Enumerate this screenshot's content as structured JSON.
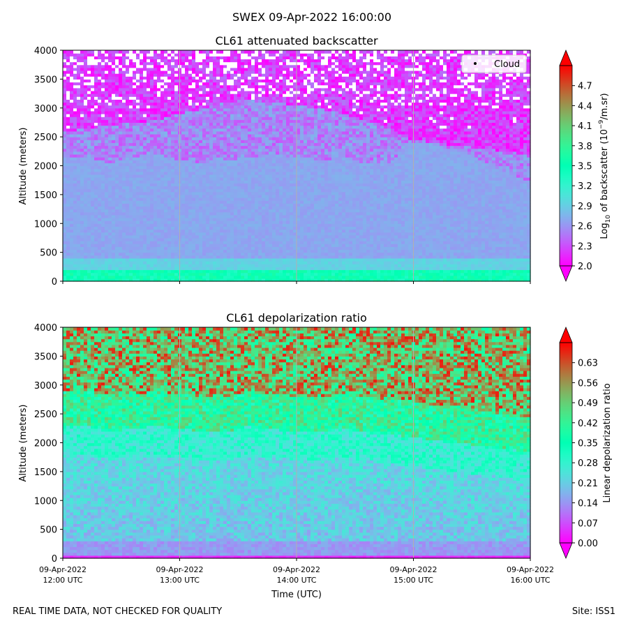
{
  "suptitle": "SWEX 09-Apr-2022 16:00:00",
  "footer": {
    "left": "REAL TIME DATA, NOT CHECKED FOR QUALITY",
    "right": "Site: ISS1"
  },
  "chart_data": [
    {
      "type": "heatmap",
      "title": "CL61 attenuated backscatter",
      "xlabel": "",
      "ylabel": "Altitude (meters)",
      "ylim": [
        0,
        4000
      ],
      "yticks": [
        0,
        500,
        1000,
        1500,
        2000,
        2500,
        3000,
        3500,
        4000
      ],
      "x_categories": [
        "12:00",
        "13:00",
        "14:00",
        "15:00",
        "16:00"
      ],
      "colorbar": {
        "label_pre": "Log",
        "label_sub": "10",
        "label_mid": " of backscatter (10",
        "label_sup": "−9",
        "label_post": "/m.sr)",
        "range": [
          2.0,
          5.0
        ],
        "ticks": [
          "2.0",
          "2.3",
          "2.6",
          "2.9",
          "3.2",
          "3.5",
          "3.8",
          "4.1",
          "4.4",
          "4.7"
        ],
        "colormap": "rainbow",
        "extend": "both"
      },
      "legend": {
        "entries": [
          "Cloud"
        ],
        "position": "top-right"
      },
      "features": {
        "surface_layer_top_m": 180,
        "boundary_layer_top_m": [
          2150,
          2150,
          2050,
          2150,
          2200,
          2100,
          2050,
          2100,
          2150,
          2200,
          2150,
          2100,
          2150,
          2050,
          2050,
          2400,
          2350,
          2250,
          2100,
          1900,
          1750
        ],
        "aerosol_layer_top_m": [
          2600,
          2650,
          2700,
          2750,
          2800,
          2900,
          3000,
          3100,
          3150,
          3100,
          3050,
          3000,
          2900,
          2800,
          2650,
          2450,
          2400,
          2350,
          2300,
          2250,
          2200
        ]
      }
    },
    {
      "type": "heatmap",
      "title": "CL61 depolarization ratio",
      "xlabel": "Time (UTC)",
      "ylabel": "Altitude (meters)",
      "ylim": [
        0,
        4000
      ],
      "yticks": [
        0,
        500,
        1000,
        1500,
        2000,
        2500,
        3000,
        3500,
        4000
      ],
      "x_categories": [
        "12:00",
        "13:00",
        "14:00",
        "15:00",
        "16:00"
      ],
      "colorbar": {
        "label": "Linear depolarization ratio",
        "range": [
          0.0,
          0.7
        ],
        "ticks": [
          "0.00",
          "0.07",
          "0.14",
          "0.21",
          "0.28",
          "0.35",
          "0.42",
          "0.49",
          "0.56",
          "0.63"
        ],
        "colormap": "rainbow",
        "extend": "both"
      },
      "features": {
        "surface_layer_top_m": 60,
        "transition_top_m": [
          2300,
          2300,
          2200,
          2250,
          2300,
          2250,
          2200,
          2200,
          2300,
          2250,
          2200,
          2200,
          2250,
          2200,
          2150,
          2100,
          2050,
          2000,
          1950,
          1900,
          1850
        ]
      }
    }
  ],
  "xaxis_ticklabels": [
    {
      "date": "09-Apr-2022",
      "time": "12:00 UTC"
    },
    {
      "date": "09-Apr-2022",
      "time": "13:00 UTC"
    },
    {
      "date": "09-Apr-2022",
      "time": "14:00 UTC"
    },
    {
      "date": "09-Apr-2022",
      "time": "15:00 UTC"
    },
    {
      "date": "09-Apr-2022",
      "time": "16:00 UTC"
    }
  ]
}
